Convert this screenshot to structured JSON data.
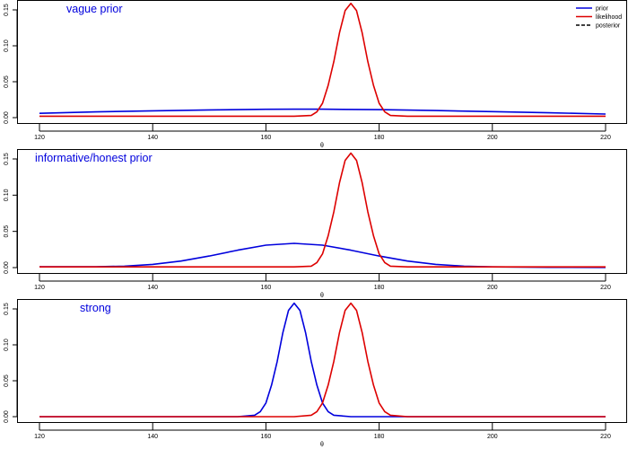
{
  "chart_data": [
    {
      "type": "line",
      "title": "vague prior",
      "xlabel": "θ",
      "ylabel": "",
      "xlim": [
        120,
        220
      ],
      "ylim": [
        0,
        0.16
      ],
      "xticks": [
        120,
        140,
        160,
        180,
        200,
        220
      ],
      "yticks": [
        0,
        0.05,
        0.1,
        0.15
      ],
      "ytick_labels": [
        "0.00",
        "0.05",
        "0.10",
        "0.15"
      ],
      "grid": false,
      "legend": "top-right",
      "legend_entries": [
        "prior",
        "likelihood",
        "posterior"
      ],
      "colors": {
        "prior": "#0000dd",
        "likelihood": "#dd0000",
        "posterior": "#000000",
        "title": "#0000dd"
      },
      "series": [
        {
          "name": "prior",
          "x": [
            120,
            130,
            140,
            150,
            160,
            165,
            170,
            180,
            190,
            200,
            210,
            220
          ],
          "y": [
            0.006,
            0.008,
            0.0095,
            0.0108,
            0.0116,
            0.0118,
            0.0117,
            0.0111,
            0.0099,
            0.0084,
            0.0067,
            0.005
          ]
        },
        {
          "name": "likelihood",
          "x": [
            120,
            165,
            168,
            169,
            170,
            171,
            172,
            173,
            174,
            175,
            176,
            177,
            178,
            179,
            180,
            181,
            182,
            185,
            220
          ],
          "y": [
            0.002,
            0.002,
            0.003,
            0.008,
            0.02,
            0.045,
            0.078,
            0.118,
            0.149,
            0.159,
            0.149,
            0.118,
            0.078,
            0.045,
            0.02,
            0.008,
            0.003,
            0.002,
            0.002
          ]
        }
      ]
    },
    {
      "type": "line",
      "title": "informative/honest prior",
      "xlabel": "θ",
      "ylabel": "",
      "xlim": [
        120,
        220
      ],
      "ylim": [
        0,
        0.16
      ],
      "xticks": [
        120,
        140,
        160,
        180,
        200,
        220
      ],
      "yticks": [
        0,
        0.05,
        0.1,
        0.15
      ],
      "ytick_labels": [
        "0.00",
        "0.05",
        "0.10",
        "0.15"
      ],
      "grid": false,
      "colors": {
        "prior": "#0000dd",
        "likelihood": "#dd0000",
        "title": "#0000dd"
      },
      "series": [
        {
          "name": "prior",
          "x": [
            120,
            130,
            135,
            140,
            145,
            150,
            155,
            160,
            165,
            170,
            175,
            180,
            185,
            190,
            195,
            200,
            210,
            220
          ],
          "y": [
            0.0012,
            0.0013,
            0.002,
            0.0045,
            0.009,
            0.016,
            0.024,
            0.031,
            0.0335,
            0.031,
            0.024,
            0.016,
            0.009,
            0.0045,
            0.002,
            0.001,
            0.0004,
            0.0003
          ]
        },
        {
          "name": "likelihood",
          "x": [
            120,
            165,
            168,
            169,
            170,
            171,
            172,
            173,
            174,
            175,
            176,
            177,
            178,
            179,
            180,
            181,
            182,
            185,
            220
          ],
          "y": [
            0.001,
            0.001,
            0.002,
            0.007,
            0.019,
            0.044,
            0.077,
            0.117,
            0.148,
            0.158,
            0.148,
            0.117,
            0.077,
            0.044,
            0.019,
            0.007,
            0.002,
            0.001,
            0.001
          ]
        }
      ]
    },
    {
      "type": "line",
      "title": "strong",
      "xlabel": "θ",
      "ylabel": "",
      "xlim": [
        120,
        220
      ],
      "ylim": [
        0,
        0.16
      ],
      "xticks": [
        120,
        140,
        160,
        180,
        200,
        220
      ],
      "yticks": [
        0,
        0.05,
        0.1,
        0.15
      ],
      "ytick_labels": [
        "0.00",
        "0.05",
        "0.10",
        "0.15"
      ],
      "grid": false,
      "colors": {
        "prior": "#0000dd",
        "likelihood": "#dd0000",
        "title": "#0000dd"
      },
      "series": [
        {
          "name": "prior",
          "x": [
            120,
            155,
            158,
            159,
            160,
            161,
            162,
            163,
            164,
            165,
            166,
            167,
            168,
            169,
            170,
            171,
            172,
            175,
            220
          ],
          "y": [
            0,
            0,
            0.002,
            0.007,
            0.019,
            0.044,
            0.077,
            0.117,
            0.148,
            0.158,
            0.148,
            0.117,
            0.077,
            0.044,
            0.019,
            0.007,
            0.002,
            0,
            0
          ]
        },
        {
          "name": "likelihood",
          "x": [
            120,
            165,
            168,
            169,
            170,
            171,
            172,
            173,
            174,
            175,
            176,
            177,
            178,
            179,
            180,
            181,
            182,
            185,
            220
          ],
          "y": [
            0,
            0,
            0.002,
            0.007,
            0.019,
            0.044,
            0.077,
            0.117,
            0.148,
            0.158,
            0.148,
            0.117,
            0.077,
            0.044,
            0.019,
            0.007,
            0.002,
            0,
            0
          ]
        }
      ]
    }
  ]
}
